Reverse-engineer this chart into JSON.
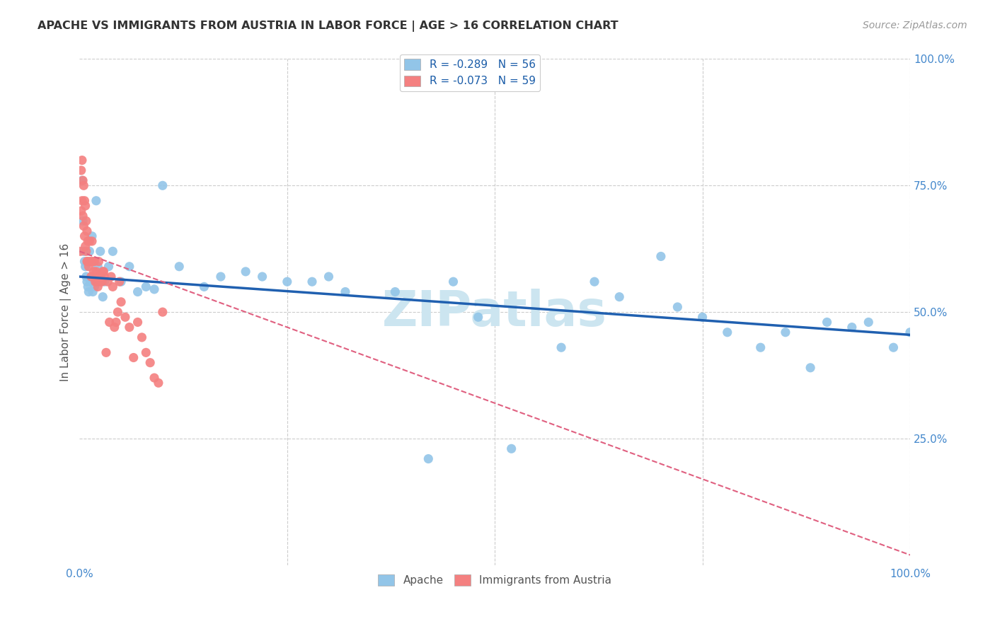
{
  "title": "APACHE VS IMMIGRANTS FROM AUSTRIA IN LABOR FORCE | AGE > 16 CORRELATION CHART",
  "source": "Source: ZipAtlas.com",
  "ylabel": "In Labor Force | Age > 16",
  "xlim": [
    0.0,
    1.0
  ],
  "ylim": [
    0.0,
    1.0
  ],
  "title_color": "#333333",
  "source_color": "#999999",
  "background_color": "#ffffff",
  "grid_color": "#cccccc",
  "watermark": "ZIPatlas",
  "watermark_color": "#cce5f0",
  "legend_label_blue": "R = -0.289   N = 56",
  "legend_label_pink": "R = -0.073   N = 59",
  "legend_bottom_blue": "Apache",
  "legend_bottom_pink": "Immigrants from Austria",
  "scatter_blue_color": "#92c5e8",
  "scatter_pink_color": "#f48080",
  "line_blue_color": "#2060b0",
  "line_pink_color": "#e06080",
  "blue_x": [
    0.003,
    0.004,
    0.005,
    0.006,
    0.007,
    0.008,
    0.009,
    0.01,
    0.011,
    0.012,
    0.013,
    0.015,
    0.016,
    0.018,
    0.02,
    0.022,
    0.025,
    0.028,
    0.03,
    0.035,
    0.04,
    0.05,
    0.06,
    0.07,
    0.08,
    0.09,
    0.1,
    0.12,
    0.15,
    0.17,
    0.2,
    0.22,
    0.25,
    0.28,
    0.3,
    0.32,
    0.38,
    0.42,
    0.45,
    0.48,
    0.52,
    0.58,
    0.62,
    0.65,
    0.7,
    0.72,
    0.75,
    0.78,
    0.82,
    0.85,
    0.88,
    0.9,
    0.93,
    0.95,
    0.98,
    1.0
  ],
  "blue_y": [
    0.76,
    0.68,
    0.62,
    0.6,
    0.59,
    0.57,
    0.56,
    0.55,
    0.54,
    0.62,
    0.56,
    0.65,
    0.54,
    0.55,
    0.72,
    0.59,
    0.62,
    0.53,
    0.56,
    0.59,
    0.62,
    0.56,
    0.59,
    0.54,
    0.55,
    0.545,
    0.75,
    0.59,
    0.55,
    0.57,
    0.58,
    0.57,
    0.56,
    0.56,
    0.57,
    0.54,
    0.54,
    0.21,
    0.56,
    0.49,
    0.23,
    0.43,
    0.56,
    0.53,
    0.61,
    0.51,
    0.49,
    0.46,
    0.43,
    0.46,
    0.39,
    0.48,
    0.47,
    0.48,
    0.43,
    0.46
  ],
  "pink_x": [
    0.001,
    0.002,
    0.002,
    0.003,
    0.003,
    0.004,
    0.004,
    0.005,
    0.005,
    0.006,
    0.006,
    0.007,
    0.007,
    0.008,
    0.008,
    0.009,
    0.009,
    0.01,
    0.01,
    0.011,
    0.012,
    0.013,
    0.014,
    0.015,
    0.016,
    0.017,
    0.018,
    0.019,
    0.02,
    0.021,
    0.022,
    0.023,
    0.024,
    0.025,
    0.026,
    0.027,
    0.028,
    0.029,
    0.03,
    0.032,
    0.034,
    0.036,
    0.038,
    0.04,
    0.042,
    0.044,
    0.046,
    0.048,
    0.05,
    0.055,
    0.06,
    0.065,
    0.07,
    0.075,
    0.08,
    0.085,
    0.09,
    0.095,
    0.1
  ],
  "pink_y": [
    0.62,
    0.78,
    0.7,
    0.8,
    0.72,
    0.69,
    0.76,
    0.75,
    0.67,
    0.72,
    0.65,
    0.71,
    0.63,
    0.68,
    0.62,
    0.66,
    0.6,
    0.64,
    0.6,
    0.59,
    0.64,
    0.6,
    0.57,
    0.64,
    0.6,
    0.58,
    0.6,
    0.56,
    0.58,
    0.56,
    0.55,
    0.6,
    0.57,
    0.56,
    0.57,
    0.56,
    0.58,
    0.58,
    0.57,
    0.42,
    0.56,
    0.48,
    0.57,
    0.55,
    0.47,
    0.48,
    0.5,
    0.56,
    0.52,
    0.49,
    0.47,
    0.41,
    0.48,
    0.45,
    0.42,
    0.4,
    0.37,
    0.36,
    0.5
  ],
  "blue_line_x0": 0.0,
  "blue_line_x1": 1.0,
  "blue_line_y0": 0.57,
  "blue_line_y1": 0.455,
  "pink_line_x0": 0.0,
  "pink_line_x1": 0.15,
  "pink_line_y0": 0.62,
  "pink_line_y1": 0.53
}
